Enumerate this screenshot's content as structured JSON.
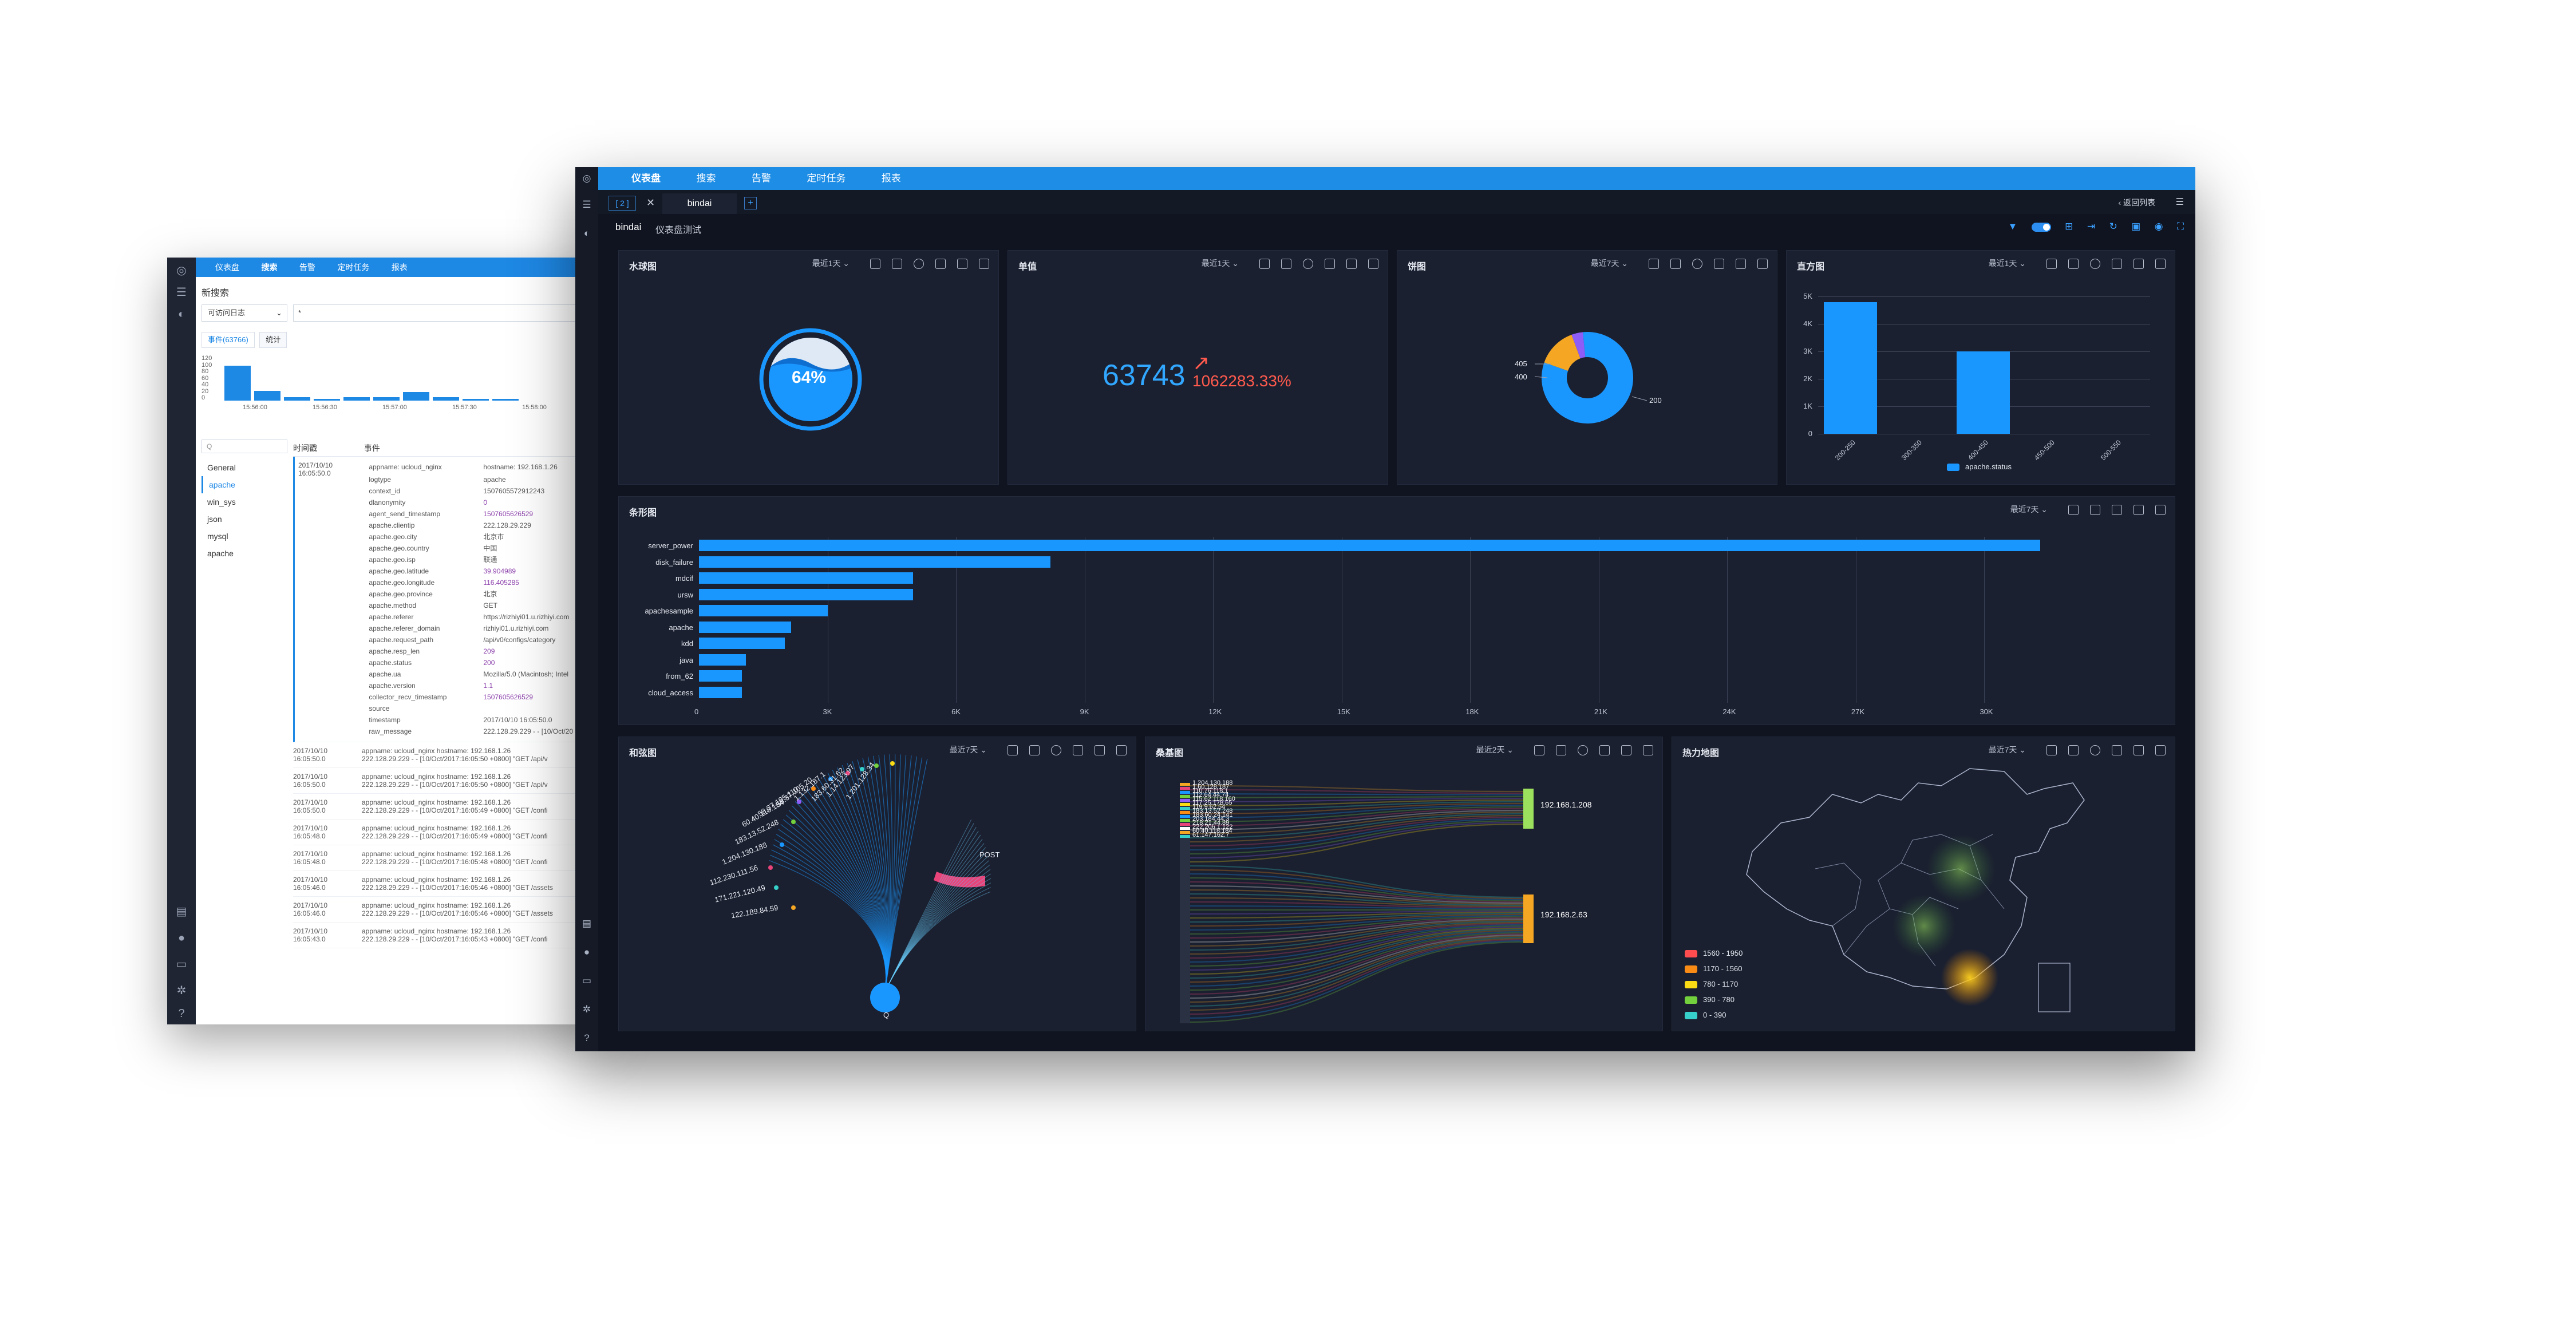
{
  "back_window": {
    "nav": [
      "仪表盘",
      "搜索",
      "告警",
      "定时任务",
      "报表"
    ],
    "title": "新搜索",
    "index_select": "可访问日志",
    "query_select": "*",
    "tabs": [
      "事件(63766)",
      "统计"
    ],
    "histogram": {
      "y_ticks": [
        "120",
        "100",
        "80",
        "60",
        "40",
        "20",
        "0"
      ],
      "x_ticks": [
        "15:56:00",
        "15:56:30",
        "15:57:00",
        "15:57:30",
        "15:58:00"
      ],
      "values": [
        105,
        30,
        10,
        6,
        10,
        10,
        25,
        10,
        6,
        6
      ]
    },
    "search_placeholder": "Q",
    "sources": [
      "General",
      "apache",
      "win_sys",
      "json",
      "mysql",
      "apache"
    ],
    "table_headers": [
      "时间戳",
      "事件"
    ],
    "first_event": {
      "date": "2017/10/10",
      "time": "16:05:50.0",
      "appname": "appname: ucloud_nginx",
      "hostname": "hostname: 192.168.1.26",
      "fields": [
        {
          "k": "logtype",
          "v": "apache"
        },
        {
          "k": "context_id",
          "v": "1507605572912243"
        },
        {
          "k": "dlanonymity",
          "v": "0"
        },
        {
          "k": "agent_send_timestamp",
          "v": "1507605626529"
        },
        {
          "k": "apache.clientip",
          "v": "222.128.29.229"
        },
        {
          "k": "apache.geo.city",
          "v": "北京市"
        },
        {
          "k": "apache.geo.country",
          "v": "中国"
        },
        {
          "k": "apache.geo.isp",
          "v": "联通"
        },
        {
          "k": "apache.geo.latitude",
          "v": "39.904989"
        },
        {
          "k": "apache.geo.longitude",
          "v": "116.405285"
        },
        {
          "k": "apache.geo.province",
          "v": "北京"
        },
        {
          "k": "apache.method",
          "v": "GET"
        },
        {
          "k": "apache.referer",
          "v": "https://rizhiyi01.u.rizhiyi.com"
        },
        {
          "k": "apache.referer_domain",
          "v": "rizhiyi01.u.rizhiyi.com"
        },
        {
          "k": "apache.request_path",
          "v": "/api/v0/configs/category"
        },
        {
          "k": "apache.resp_len",
          "v": "209"
        },
        {
          "k": "apache.status",
          "v": "200"
        },
        {
          "k": "apache.ua",
          "v": "Mozilla/5.0 (Macintosh; Intel"
        },
        {
          "k": "apache.version",
          "v": "1.1"
        },
        {
          "k": "collector_recv_timestamp",
          "v": "1507605626529"
        },
        {
          "k": "source",
          "v": ""
        },
        {
          "k": "timestamp",
          "v": "2017/10/10 16:05:50.0"
        },
        {
          "k": "raw_message",
          "v": "222.128.29.229 - - [10/Oct/20"
        }
      ]
    },
    "events": [
      {
        "date": "2017/10/10",
        "time": "16:05:50.0",
        "line1": "appname: ucloud_nginx    hostname: 192.168.1.26",
        "line2": "222.128.29.229 - - [10/Oct/2017:16:05:50 +0800] \"GET /api/v"
      },
      {
        "date": "2017/10/10",
        "time": "16:05:50.0",
        "line1": "appname: ucloud_nginx    hostname: 192.168.1.26",
        "line2": "222.128.29.229 - - [10/Oct/2017:16:05:50 +0800] \"GET /api/v"
      },
      {
        "date": "2017/10/10",
        "time": "16:05:50.0",
        "line1": "appname: ucloud_nginx    hostname: 192.168.1.26",
        "line2": "222.128.29.229 - - [10/Oct/2017:16:05:49 +0800] \"GET /confi"
      },
      {
        "date": "2017/10/10",
        "time": "16:05:48.0",
        "line1": "appname: ucloud_nginx    hostname: 192.168.1.26",
        "line2": "222.128.29.229 - - [10/Oct/2017:16:05:49 +0800] \"GET /confi"
      },
      {
        "date": "2017/10/10",
        "time": "16:05:48.0",
        "line1": "appname: ucloud_nginx    hostname: 192.168.1.26",
        "line2": "222.128.29.229 - - [10/Oct/2017:16:05:48 +0800] \"GET /confi"
      },
      {
        "date": "2017/10/10",
        "time": "16:05:46.0",
        "line1": "appname: ucloud_nginx    hostname: 192.168.1.26",
        "line2": "222.128.29.229 - - [10/Oct/2017:16:05:46 +0800] \"GET /assets"
      },
      {
        "date": "2017/10/10",
        "time": "16:05:46.0",
        "line1": "appname: ucloud_nginx    hostname: 192.168.1.26",
        "line2": "222.128.29.229 - - [10/Oct/2017:16:05:46 +0800] \"GET /assets"
      },
      {
        "date": "2017/10/10",
        "time": "16:05:43.0",
        "line1": "appname: ucloud_nginx    hostname: 192.168.1.26",
        "line2": "222.128.29.229 - - [10/Oct/2017:16:05:43 +0800] \"GET /confi"
      }
    ]
  },
  "front_window": {
    "nav": [
      "仪表盘",
      "搜索",
      "告警",
      "定时任务",
      "报表"
    ],
    "tab_pager": "[ 2 ]",
    "tab_close": "✕",
    "tab_name": "bindai",
    "tab_add": "+",
    "back_to_list": "返回列表",
    "dashboard_name": "bindai",
    "dashboard_desc": "仪表盘测试",
    "range_label": "最近1天",
    "range_label_7d": "最近7天",
    "panels": {
      "liquid": {
        "title": "水球图",
        "range": "最近1天",
        "value": "64%",
        "fill": 0.64
      },
      "single": {
        "title": "单值",
        "range": "最近1天",
        "value": "63743",
        "change": "1062283.33%",
        "arrow": "↗"
      },
      "pie": {
        "title": "饼图",
        "range": "最近7天",
        "labels": [
          "405",
          "400",
          "200"
        ]
      },
      "histogram": {
        "title": "直方图",
        "range": "最近1天",
        "legend": "apache.status"
      },
      "bar": {
        "title": "条形图",
        "range": "最近7天"
      },
      "chord": {
        "title": "和弦图",
        "range": "最近7天",
        "center_label": "POST",
        "bottom_label": "Q"
      },
      "sankey": {
        "title": "桑基图",
        "range": "最近2天",
        "targets": [
          "192.168.1.208",
          "192.168.2.63"
        ]
      },
      "heatmap": {
        "title": "热力地图",
        "range": "最近7天"
      }
    }
  },
  "chart_data": [
    {
      "type": "pie",
      "title": "饼图",
      "slices": [
        {
          "label": "200",
          "value": 82,
          "color": "#1a97ff"
        },
        {
          "label": "400",
          "value": 14,
          "color": "#f5a623"
        },
        {
          "label": "405",
          "value": 4,
          "color": "#8e5cf7"
        }
      ]
    },
    {
      "type": "bar",
      "title": "直方图",
      "categories": [
        "200-250",
        "300-350",
        "400-450",
        "450-500",
        "500-550"
      ],
      "values": [
        4800,
        0,
        3000,
        0,
        0
      ],
      "y_ticks": [
        "5K",
        "4K",
        "3K",
        "2K",
        "1K",
        "0"
      ],
      "ylim": [
        0,
        5000
      ],
      "legend": "apache.status",
      "legend_placement": "bottom"
    },
    {
      "type": "bar",
      "title": "条形图",
      "orientation": "horizontal",
      "categories": [
        "server_power",
        "disk_failure",
        "mdcif",
        "ursw",
        "apachesample",
        "apache",
        "kdd",
        "java",
        "from_62",
        "cloud_access"
      ],
      "values": [
        31300,
        8200,
        5000,
        5000,
        3000,
        2150,
        2000,
        1100,
        1000,
        1000
      ],
      "x_ticks": [
        "0",
        "3K",
        "6K",
        "9K",
        "12K",
        "15K",
        "18K",
        "21K",
        "24K",
        "27K",
        "30K"
      ],
      "xlim": [
        0,
        33000
      ],
      "grid": true
    },
    {
      "type": "chord",
      "title": "和弦图",
      "labels": [
        "122.189.84.59",
        "171.221.120.49",
        "112.230.111.56",
        "1.204.130.188",
        "183.13.52.248",
        "60.40.118.184",
        "58.37.105.110",
        "58.37.105.20",
        "1.132.187.1",
        "183.60.31.62",
        "1.14.123.97",
        "1.201.128.34"
      ],
      "target": "POST"
    },
    {
      "type": "sankey",
      "title": "桑基图",
      "sources": [
        "1.204.130.188",
        "1.60.128.187",
        "110.76.118.1",
        "112.64.44.74",
        "115.62.118.160",
        "117.25.178.65",
        "119.9.62.54",
        "183.13.52.248",
        "183.60.24.141",
        "203.184.44.3",
        "218.21.44.89",
        "222.206.1.122",
        "60.40.118.184",
        "61.147.162.7"
      ],
      "targets": [
        "192.168.1.208",
        "192.168.2.63"
      ]
    },
    {
      "type": "heatmap",
      "title": "热力地图",
      "legend": [
        {
          "label": "1560 - 1950",
          "color": "#ff4d4f"
        },
        {
          "label": "1170 - 1560",
          "color": "#fa8c16"
        },
        {
          "label": "780 - 1170",
          "color": "#fadb14"
        },
        {
          "label": "390 - 780",
          "color": "#73d13d"
        },
        {
          "label": "0 - 390",
          "color": "#36cfc9"
        }
      ]
    }
  ]
}
